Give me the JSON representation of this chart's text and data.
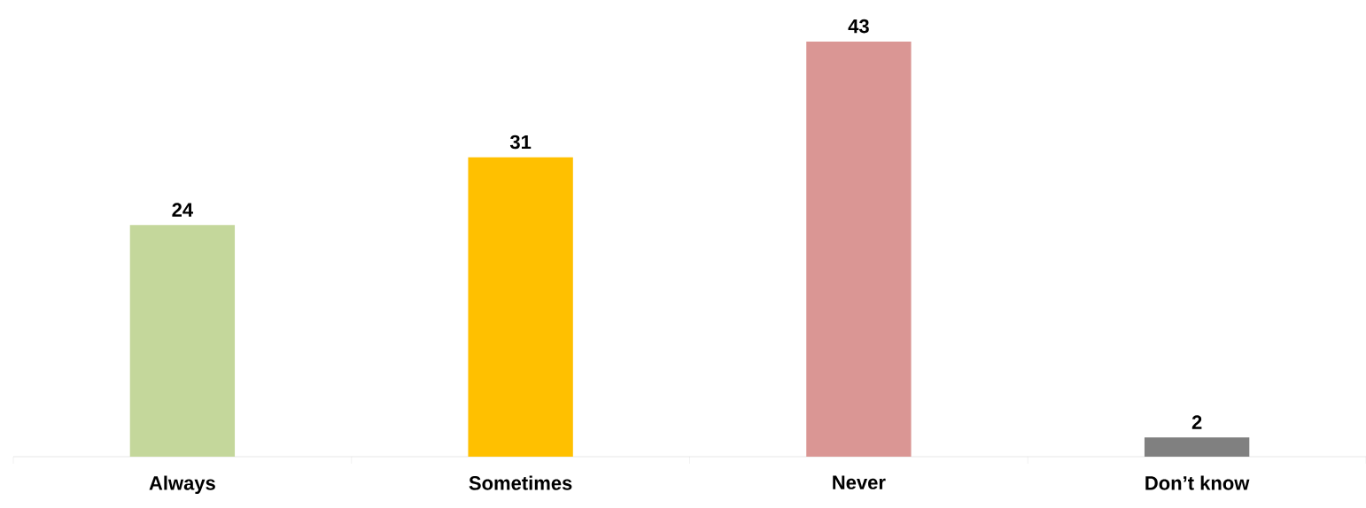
{
  "chart_data": {
    "type": "bar",
    "categories": [
      "Always",
      "Sometimes",
      "Never",
      "Don’t know"
    ],
    "values": [
      24,
      31,
      43,
      2
    ],
    "colors": [
      "#c4d79b",
      "#ffc000",
      "#da9694",
      "#808080"
    ],
    "data_labels": true
  }
}
